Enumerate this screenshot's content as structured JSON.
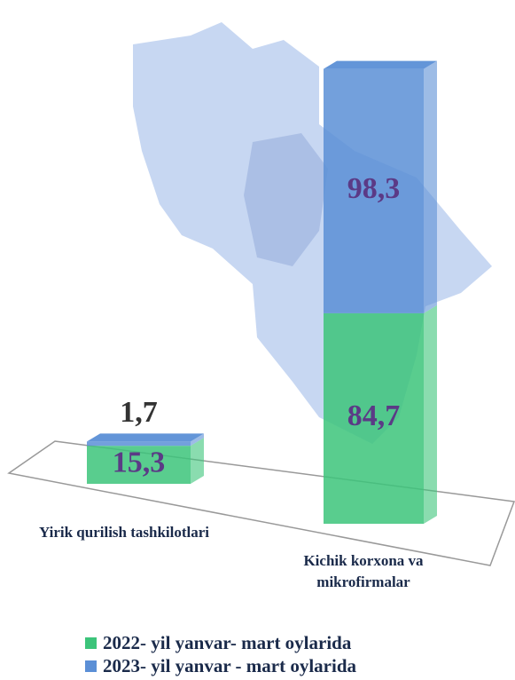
{
  "chart_data": {
    "type": "bar",
    "stacked": true,
    "categories": [
      "Yirik qurilish tashkilotlari",
      "Kichik korxona va mikrofirmalar"
    ],
    "series": [
      {
        "name": "2022-  yil yanvar- mart oylarida",
        "color": "#3cc47a",
        "values": [
          15.3,
          84.7
        ],
        "value_labels": [
          "15,3",
          "84,7"
        ]
      },
      {
        "name": "2023-  yil yanvar - mart oylarida",
        "color": "#5b8fd6",
        "values": [
          1.7,
          98.3
        ],
        "value_labels": [
          "1,7",
          "98,3"
        ]
      }
    ]
  }
}
